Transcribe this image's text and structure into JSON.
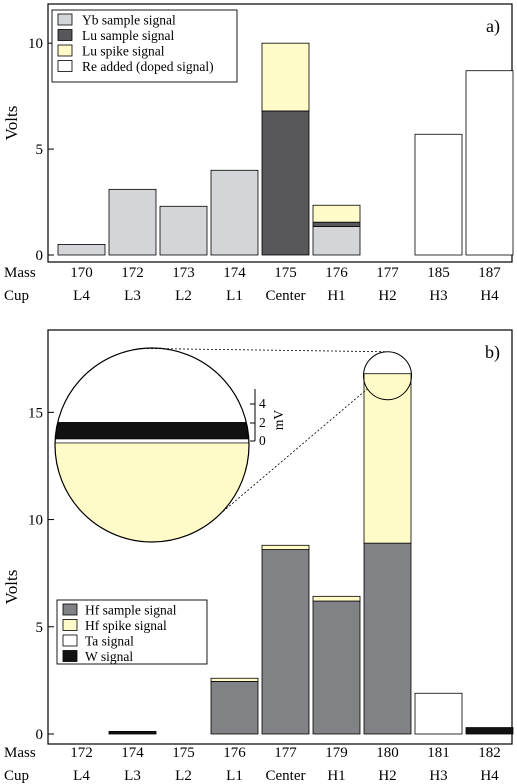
{
  "chart_data": [
    {
      "type": "bar",
      "stacked": true,
      "panel_label": "a)",
      "ylabel": "Volts",
      "ylim": [
        0,
        11
      ],
      "yticks": [
        0,
        5,
        10
      ],
      "row_labels": {
        "mass": "Mass",
        "cup": "Cup"
      },
      "masses": [
        "170",
        "172",
        "173",
        "174",
        "175",
        "176",
        "177",
        "185",
        "187"
      ],
      "cups": [
        "L4",
        "L3",
        "L2",
        "L1",
        "Center",
        "H1",
        "H2",
        "H3",
        "H4"
      ],
      "series": [
        {
          "name": "Yb sample signal",
          "color": "#d3d5d8",
          "values": [
            0.5,
            3.1,
            2.3,
            4.0,
            0,
            1.35,
            0,
            0,
            0
          ]
        },
        {
          "name": "Lu sample signal",
          "color": "#58585b",
          "values": [
            0,
            0,
            0,
            0,
            6.8,
            0.2,
            0,
            0,
            0
          ]
        },
        {
          "name": "Lu spike signal",
          "color": "#fffbc9",
          "values": [
            0,
            0,
            0,
            0,
            3.2,
            0.8,
            0,
            0,
            0
          ]
        },
        {
          "name": "Re added (doped  signal)",
          "color": "#ffffff",
          "values": [
            0,
            0,
            0,
            0,
            0,
            0,
            0,
            5.7,
            8.7
          ]
        }
      ]
    },
    {
      "type": "bar",
      "stacked": true,
      "panel_label": "b)",
      "ylabel": "Volts",
      "ylim": [
        0,
        18
      ],
      "yticks": [
        0,
        5,
        10,
        15
      ],
      "row_labels": {
        "mass": "Mass",
        "cup": "Cup"
      },
      "masses": [
        "172",
        "174",
        "175",
        "176",
        "177",
        "179",
        "180",
        "181",
        "182"
      ],
      "cups": [
        "L4",
        "L3",
        "L2",
        "L1",
        "Center",
        "H1",
        "H2",
        "H3",
        "H4"
      ],
      "series": [
        {
          "name": "Hf sample signal",
          "color": "#818285",
          "values": [
            0,
            0,
            0,
            2.45,
            8.6,
            6.2,
            8.9,
            0,
            0
          ]
        },
        {
          "name": "Hf spike signal",
          "color": "#fffbc9",
          "values": [
            0,
            0,
            0,
            0.15,
            0.2,
            0.22,
            7.9,
            0,
            0
          ]
        },
        {
          "name": "Ta signal",
          "color": "#ffffff",
          "values": [
            0,
            0,
            0,
            0,
            0,
            0,
            0,
            1.9,
            0
          ]
        },
        {
          "name": "W signal",
          "color": "#111111",
          "values": [
            0,
            0.12,
            0,
            0,
            0,
            0,
            0,
            0,
            0.3
          ]
        }
      ],
      "inset": {
        "units": "mV",
        "ticks": [
          "0",
          "2",
          "4"
        ],
        "bands": [
          {
            "name": "W signal",
            "color": "#111111"
          },
          {
            "name": "Ta signal",
            "color": "#ffffff"
          },
          {
            "name": "Hf spike signal",
            "color": "#fffbc9"
          }
        ]
      }
    }
  ]
}
